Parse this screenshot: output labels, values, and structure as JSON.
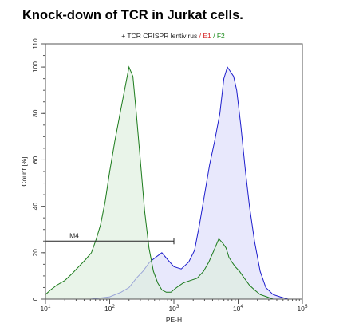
{
  "page": {
    "title": "Knock-down of TCR in Jurkat cells."
  },
  "chart_data": {
    "type": "area",
    "title": "+ TCR CRISPR lentivirus / E1 / F2",
    "subtitle_parts": [
      {
        "text": "+ TCR CRISPR lentivirus ",
        "color": "#222222"
      },
      {
        "text": "/ E1",
        "color": "#d42020"
      },
      {
        "text": " / F2",
        "color": "#1a8a1a"
      }
    ],
    "xlabel": "PE-H",
    "ylabel": "Count [%]",
    "x_scale": "log",
    "xlim": [
      10,
      100000
    ],
    "ylim": [
      0,
      110
    ],
    "grid": false,
    "x_ticks": [
      {
        "value": 10,
        "base": "10",
        "exp": "1"
      },
      {
        "value": 100,
        "base": "10",
        "exp": "2"
      },
      {
        "value": 1000,
        "base": "10",
        "exp": "3"
      },
      {
        "value": 10000,
        "base": "10",
        "exp": "4"
      },
      {
        "value": 100000,
        "base": "10",
        "exp": "5"
      }
    ],
    "y_ticks": [
      "0",
      "20",
      "40",
      "60",
      "80",
      "100",
      "110"
    ],
    "series": [
      {
        "name": "E1",
        "line_color": "#1c1ccc",
        "fill_color": "#dcdcfa",
        "x": [
          10,
          50,
          100,
          150,
          200,
          260,
          330,
          420,
          520,
          650,
          800,
          1000,
          1300,
          1700,
          2100,
          2500,
          3000,
          3600,
          4300,
          5200,
          6000,
          6800,
          7600,
          8500,
          9500,
          11000,
          13000,
          15000,
          18000,
          22000,
          27000,
          35000,
          45000,
          60000
        ],
        "y": [
          0,
          0,
          1,
          3,
          5,
          9,
          12,
          16,
          18,
          20,
          17,
          14,
          13,
          16,
          21,
          32,
          45,
          58,
          68,
          80,
          95,
          100,
          98,
          96,
          90,
          75,
          55,
          40,
          25,
          12,
          5,
          2,
          1,
          0
        ]
      },
      {
        "name": "F2",
        "line_color": "#1a7a1a",
        "fill_color": "#ddeedd",
        "x": [
          10,
          12,
          15,
          20,
          26,
          33,
          42,
          52,
          62,
          72,
          85,
          100,
          120,
          145,
          170,
          200,
          230,
          260,
          300,
          350,
          410,
          480,
          560,
          650,
          760,
          900,
          1100,
          1400,
          1800,
          2300,
          2900,
          3500,
          4200,
          5000,
          5800,
          6500,
          7200,
          8000,
          9000,
          10500,
          12500,
          15000,
          18000,
          22000,
          28000,
          35000,
          45000
        ],
        "y": [
          2,
          4,
          6,
          8,
          11,
          14,
          17,
          20,
          26,
          32,
          42,
          55,
          68,
          80,
          90,
          100,
          96,
          80,
          60,
          38,
          22,
          12,
          7,
          4,
          3,
          3,
          5,
          7,
          8,
          9,
          12,
          16,
          21,
          26,
          24,
          22,
          18,
          16,
          14,
          12,
          9,
          6,
          4,
          2,
          1,
          0,
          0
        ]
      }
    ],
    "gates": [
      {
        "name": "M4",
        "x_start": 10,
        "x_end": 1000,
        "y": 25
      }
    ]
  }
}
